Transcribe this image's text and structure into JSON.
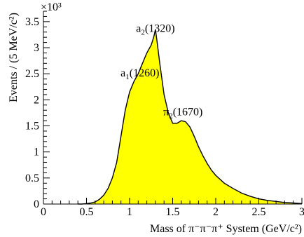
{
  "chart_data": {
    "type": "area",
    "ylabel": "Events / (5 MeV/c²)",
    "xlabel": "Mass of π⁻π⁻π⁺ System (GeV/c²)",
    "y_multiplier": "×10³",
    "xlim": [
      0,
      3
    ],
    "ylim": [
      0,
      3.7
    ],
    "x_ticks": [
      0,
      0.5,
      1,
      1.5,
      2,
      2.5,
      3
    ],
    "x_tick_labels": [
      "0",
      "0.5",
      "1",
      "1.5",
      "2",
      "2.5",
      "3"
    ],
    "y_ticks": [
      0,
      0.5,
      1,
      1.5,
      2,
      2.5,
      3,
      3.5
    ],
    "y_tick_labels": [
      "0",
      "0.5",
      "1",
      "1.5",
      "2",
      "2.5",
      "3",
      "3.5"
    ],
    "fill_color": "#ffff00",
    "line_color": "#000000",
    "annotations": [
      {
        "base": "a",
        "sub": "2",
        "rest": "(1320)",
        "x": 1.3,
        "y": 3.3
      },
      {
        "base": "a",
        "sub": "1",
        "rest": "(1260)",
        "x": 1.12,
        "y": 2.45
      },
      {
        "base": "π",
        "sub": "2",
        "rest": "(1670)",
        "x": 1.62,
        "y": 1.7
      }
    ],
    "series": [
      {
        "x": [
          0.4,
          0.45,
          0.5,
          0.55,
          0.6,
          0.65,
          0.7,
          0.75,
          0.8,
          0.85,
          0.9,
          0.95,
          1.0,
          1.05,
          1.1,
          1.15,
          1.2,
          1.25,
          1.28,
          1.3,
          1.32,
          1.35,
          1.38,
          1.4,
          1.45,
          1.5,
          1.55,
          1.6,
          1.65,
          1.7,
          1.75,
          1.8,
          1.85,
          1.9,
          1.95,
          2.0,
          2.1,
          2.2,
          2.3,
          2.4,
          2.5,
          2.6,
          2.7,
          2.8,
          2.9,
          3.0
        ],
        "y": [
          0.0,
          0.0,
          0.01,
          0.02,
          0.04,
          0.09,
          0.17,
          0.3,
          0.5,
          0.8,
          1.3,
          1.8,
          2.15,
          2.35,
          2.5,
          2.7,
          2.9,
          3.05,
          3.2,
          3.35,
          3.1,
          2.7,
          2.35,
          2.1,
          1.75,
          1.55,
          1.55,
          1.6,
          1.58,
          1.48,
          1.3,
          1.1,
          0.93,
          0.78,
          0.65,
          0.55,
          0.4,
          0.3,
          0.21,
          0.15,
          0.1,
          0.07,
          0.05,
          0.03,
          0.02,
          0.01
        ]
      }
    ]
  }
}
